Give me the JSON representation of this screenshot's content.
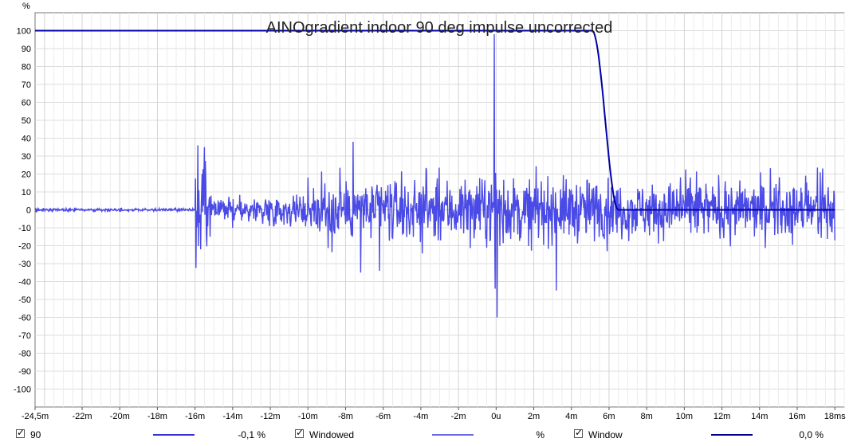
{
  "chart_data": {
    "type": "line",
    "title": "AINOgradient indoor 90 deg impulse uncorrected",
    "y_unit_label": "%",
    "ylim": [
      -110,
      110
    ],
    "xlim": [
      -24.5,
      18.5
    ],
    "grid": true,
    "y_ticks": [
      100,
      90,
      80,
      70,
      60,
      50,
      40,
      30,
      20,
      10,
      0,
      -10,
      -20,
      -30,
      -40,
      -50,
      -60,
      -70,
      -80,
      -90,
      -100
    ],
    "x_ticks": [
      {
        "v": -24.5,
        "label": "-24,5m"
      },
      {
        "v": -22,
        "label": "-22m"
      },
      {
        "v": -20,
        "label": "-20m"
      },
      {
        "v": -18,
        "label": "-18m"
      },
      {
        "v": -16,
        "label": "-16m"
      },
      {
        "v": -14,
        "label": "-14m"
      },
      {
        "v": -12,
        "label": "-12m"
      },
      {
        "v": -10,
        "label": "-10m"
      },
      {
        "v": -8,
        "label": "-8m"
      },
      {
        "v": -6,
        "label": "-6m"
      },
      {
        "v": -4,
        "label": "-4m"
      },
      {
        "v": -2,
        "label": "-2m"
      },
      {
        "v": 0,
        "label": "0u"
      },
      {
        "v": 2,
        "label": "2m"
      },
      {
        "v": 4,
        "label": "4m"
      },
      {
        "v": 6,
        "label": "6m"
      },
      {
        "v": 8,
        "label": "8m"
      },
      {
        "v": 10,
        "label": "10m"
      },
      {
        "v": 12,
        "label": "12m"
      },
      {
        "v": 14,
        "label": "14m"
      },
      {
        "v": 16,
        "label": "16m"
      },
      {
        "v": 18,
        "label": "18ms"
      }
    ],
    "series": [
      {
        "name": "90",
        "color": "#4a4ae6",
        "kind": "impulse",
        "key_points": [
          {
            "x": -24.5,
            "y": 0
          },
          {
            "x": -16.0,
            "y": 0
          },
          {
            "x": -15.85,
            "y": 36
          },
          {
            "x": -15.7,
            "y": -22
          },
          {
            "x": -15.5,
            "y": 35
          },
          {
            "x": -15.2,
            "y": -15
          },
          {
            "x": -14.0,
            "y": -10
          },
          {
            "x": -10.0,
            "y": 18
          },
          {
            "x": -7.6,
            "y": 38
          },
          {
            "x": -7.2,
            "y": -35
          },
          {
            "x": -6.2,
            "y": -34
          },
          {
            "x": -0.1,
            "y": 98
          },
          {
            "x": -0.05,
            "y": -44
          },
          {
            "x": 0.05,
            "y": -60
          },
          {
            "x": 3.2,
            "y": -45
          },
          {
            "x": 5.9,
            "y": -23
          },
          {
            "x": 18.0,
            "y": -17
          }
        ]
      },
      {
        "name": "Window",
        "color": "#0000aa",
        "kind": "window",
        "flat_top": 100,
        "fall_start_ms": 5.1,
        "fall_end_ms": 6.5,
        "end_level": 0
      }
    ]
  },
  "legend": [
    {
      "name": "90",
      "value": "-0,1 %",
      "color": "#3333cc"
    },
    {
      "name": "Windowed",
      "value": "%",
      "color": "#6a6ae0"
    },
    {
      "name": "Window",
      "value": "0,0 %",
      "color": "#00008b"
    }
  ]
}
